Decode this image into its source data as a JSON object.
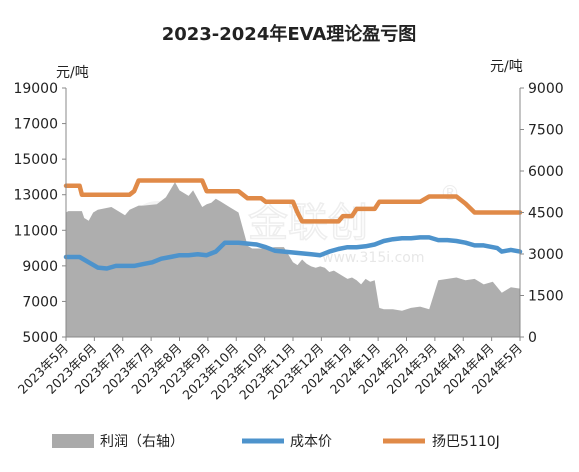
{
  "chart_data": {
    "type": "line",
    "title": "2023-2024年EVA理论盈亏图",
    "left_unit": "元/吨",
    "right_unit": "元/吨",
    "left_axis": {
      "ticks": [
        5000,
        7000,
        9000,
        11000,
        13000,
        15000,
        17000,
        19000
      ],
      "ylim": [
        5000,
        19000
      ]
    },
    "right_axis": {
      "ticks": [
        0,
        1500,
        3000,
        4500,
        6000,
        7500,
        9000
      ],
      "ylim": [
        0,
        9000
      ]
    },
    "x_ticks": [
      "2023年5月",
      "2023年6月",
      "2023年7月",
      "2023年7月",
      "2023年8月",
      "2023年9月",
      "2023年10月",
      "2023年10月",
      "2023年11月",
      "2023年12月",
      "2024年1月",
      "2024年1月",
      "2024年2月",
      "2024年3月",
      "2024年4月",
      "2024年4月",
      "2024年5月"
    ],
    "xlim": [
      0,
      100
    ],
    "grid": false,
    "legend_position": "bottom",
    "watermark": {
      "text": "金联创",
      "url": "www.315i.com",
      "reg": "®"
    },
    "series": [
      {
        "name": "利润（右轴）",
        "type": "area",
        "axis": "right",
        "color": "#aaaaaa",
        "x": [
          0,
          0.5,
          3.5,
          4,
          5,
          6,
          7,
          10,
          12,
          13,
          14,
          16,
          17,
          20,
          22,
          24,
          25,
          27,
          28,
          30,
          31,
          32,
          33,
          34,
          36,
          38,
          40,
          41,
          42,
          44,
          46,
          48,
          50,
          51,
          52,
          53,
          54,
          55,
          56,
          57,
          58,
          59,
          60,
          61,
          62,
          63,
          64,
          65,
          66,
          67,
          68,
          69,
          70,
          72,
          74,
          76,
          78,
          80,
          82,
          84,
          86,
          88,
          90,
          92,
          94,
          96,
          98,
          100
        ],
        "y": [
          4500,
          4550,
          4550,
          4300,
          4200,
          4500,
          4600,
          4700,
          4500,
          4400,
          4600,
          4750,
          4750,
          4800,
          5050,
          5600,
          5300,
          5100,
          5300,
          4700,
          4800,
          4850,
          5000,
          4900,
          4700,
          4500,
          3300,
          3200,
          3200,
          3200,
          3250,
          3250,
          2700,
          2600,
          2800,
          2650,
          2550,
          2500,
          2550,
          2500,
          2350,
          2400,
          2300,
          2200,
          2100,
          2150,
          2050,
          1900,
          2100,
          2000,
          2050,
          1050,
          1000,
          1000,
          950,
          1050,
          1100,
          1000,
          2050,
          2100,
          2150,
          2050,
          2100,
          1900,
          2000,
          1600,
          1800,
          1750
        ]
      },
      {
        "name": "成本价",
        "type": "line",
        "axis": "left",
        "color": "#4d93cc",
        "x": [
          0,
          3,
          5,
          7,
          9,
          11,
          13,
          15,
          17,
          19,
          21,
          23,
          25,
          27,
          29,
          31,
          32,
          33,
          35,
          36,
          38,
          40,
          42,
          44,
          46,
          48,
          50,
          52,
          54,
          56,
          58,
          60,
          62,
          64,
          66,
          68,
          70,
          72,
          74,
          76,
          78,
          80,
          82,
          84,
          86,
          88,
          90,
          92,
          94,
          95,
          96,
          98,
          100
        ],
        "y": [
          9500,
          9500,
          9200,
          8900,
          8850,
          9000,
          9000,
          9000,
          9100,
          9200,
          9400,
          9500,
          9600,
          9600,
          9650,
          9600,
          9700,
          9800,
          10300,
          10300,
          10300,
          10250,
          10200,
          10050,
          9850,
          9800,
          9750,
          9700,
          9650,
          9600,
          9800,
          9950,
          10050,
          10050,
          10100,
          10200,
          10400,
          10500,
          10550,
          10550,
          10600,
          10600,
          10450,
          10450,
          10400,
          10300,
          10150,
          10150,
          10050,
          10000,
          9800,
          9900,
          9800
        ]
      },
      {
        "name": "扬巴5110J",
        "type": "line",
        "axis": "left",
        "color": "#e08a48",
        "x": [
          0,
          3,
          3.5,
          7,
          10,
          12,
          13,
          14,
          15,
          16,
          17,
          18,
          30,
          31,
          32,
          33,
          34,
          36,
          38,
          40,
          41,
          42,
          43,
          44,
          46,
          48,
          50,
          51,
          52,
          53,
          54,
          58,
          60,
          61,
          62,
          63,
          64,
          66,
          68,
          69,
          70,
          72,
          74,
          76,
          78,
          80,
          82,
          84,
          86,
          88,
          90,
          92,
          94,
          95,
          96,
          98,
          100
        ],
        "y": [
          13500,
          13500,
          13000,
          13000,
          13000,
          13000,
          13000,
          13000,
          13200,
          13800,
          13800,
          13800,
          13800,
          13200,
          13200,
          13200,
          13200,
          13200,
          13200,
          12800,
          12800,
          12800,
          12800,
          12600,
          12600,
          12600,
          12600,
          12000,
          11500,
          11500,
          11500,
          11500,
          11500,
          11800,
          11800,
          11800,
          12200,
          12200,
          12200,
          12600,
          12600,
          12600,
          12600,
          12600,
          12600,
          12900,
          12900,
          12900,
          12900,
          12500,
          12000,
          12000,
          12000,
          12000,
          12000,
          12000,
          12000
        ]
      }
    ],
    "legend": [
      {
        "label": "利润（右轴）",
        "symbol": "area",
        "color": "#aaaaaa"
      },
      {
        "label": "成本价",
        "symbol": "line",
        "color": "#4d93cc"
      },
      {
        "label": "扬巴5110J",
        "symbol": "line",
        "color": "#e08a48"
      }
    ]
  }
}
